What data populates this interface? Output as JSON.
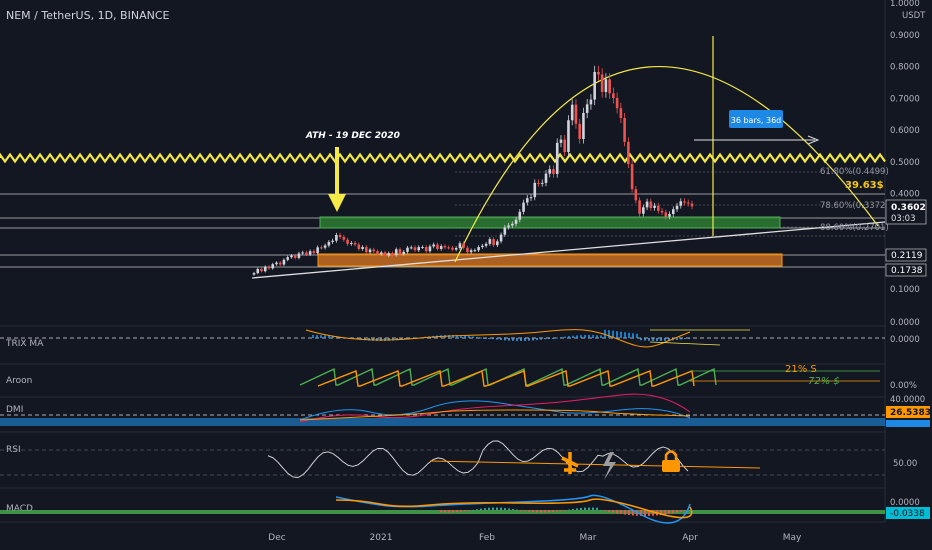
{
  "title": "NEM / TetherUS, 1D, BINANCE",
  "currency": "USDT",
  "annotations": {
    "ath": "ATH - 19 DEC 2020",
    "bars_box": "36 bars, 36d",
    "target": "39.63$",
    "price_label": "0.3602",
    "countdown": "03:03",
    "level_0_2119": "0.2119",
    "level_0_1738": "0.1738",
    "aroon_21": "21% S",
    "aroon_72": "72% $",
    "dmi_value": "26.5383",
    "macd_value": "-0.0338"
  },
  "fib_labels": [
    "61.80%(0.4499)",
    "78.60%(0.3372)",
    "88.60%(0.2701)"
  ],
  "panes": [
    "TRIX MA",
    "Aroon",
    "DMI",
    "RSI",
    "MACD"
  ],
  "pane_scale": {
    "trix": "0.0000",
    "aroon_top": "0.0000",
    "aroon_bottom": "0.00%",
    "dmi_top": "40.0000",
    "rsi": "50.00",
    "macd_top": "0.0000"
  },
  "colors": {
    "bg": "#131722",
    "up": "#d1d4dc",
    "down": "#ef5350",
    "yellow": "#f5e94a",
    "green_zone": "#2e7d32",
    "orange_zone": "#e07a22"
  },
  "chart_data": {
    "type": "candlestick",
    "title": "NEM / TetherUS, 1D, BINANCE",
    "x_ticks": [
      "Dec",
      "2021",
      "Feb",
      "Mar",
      "Apr",
      "May"
    ],
    "y_ticks": [
      "1.0000",
      "0.9000",
      "0.8000",
      "0.7000",
      "0.6000",
      "0.5000",
      "0.4000",
      "0.1000"
    ],
    "ylim": [
      0.03,
      1.0
    ],
    "series": [
      {
        "name": "NEM/USDT",
        "close": [
          0.15,
          0.163,
          0.156,
          0.17,
          0.165,
          0.178,
          0.183,
          0.177,
          0.192,
          0.2,
          0.205,
          0.198,
          0.212,
          0.215,
          0.209,
          0.219,
          0.213,
          0.231,
          0.23,
          0.237,
          0.248,
          0.252,
          0.27,
          0.264,
          0.255,
          0.242,
          0.245,
          0.24,
          0.226,
          0.232,
          0.216,
          0.224,
          0.219,
          0.21,
          0.215,
          0.205,
          0.213,
          0.207,
          0.225,
          0.21,
          0.217,
          0.23,
          0.231,
          0.222,
          0.232,
          0.232,
          0.219,
          0.234,
          0.24,
          0.226,
          0.235,
          0.231,
          0.23,
          0.224,
          0.229,
          0.244,
          0.23,
          0.216,
          0.222,
          0.222,
          0.232,
          0.236,
          0.242,
          0.257,
          0.238,
          0.25,
          0.271,
          0.294,
          0.3,
          0.305,
          0.318,
          0.343,
          0.372,
          0.386,
          0.389,
          0.434,
          0.433,
          0.434,
          0.463,
          0.477,
          0.462,
          0.56,
          0.57,
          0.531,
          0.631,
          0.68,
          0.62,
          0.572,
          0.654,
          0.681,
          0.696,
          0.783,
          0.775,
          0.72,
          0.76,
          0.716,
          0.701,
          0.669,
          0.638,
          0.563,
          0.493,
          0.414,
          0.379,
          0.337,
          0.357,
          0.375,
          0.355,
          0.362,
          0.346,
          0.341,
          0.328,
          0.336,
          0.351,
          0.362,
          0.376,
          0.372,
          0.369,
          0.36
        ]
      }
    ]
  }
}
